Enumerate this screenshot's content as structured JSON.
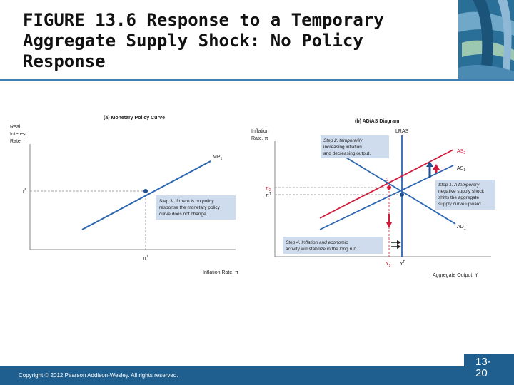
{
  "slide": {
    "title": "FIGURE 13.6  Response to a Temporary Aggregate Supply Shock: No Policy Response",
    "copyright": "Copyright © 2012 Pearson Addison-Wesley. All rights reserved.",
    "page_number_line1": "13-",
    "page_number_line2": "20"
  },
  "colors": {
    "blue_curve": "#2b66b1",
    "red_curve": "#d01c3b",
    "callout_bg": "#cfdced",
    "accent": "#1f5f8f"
  },
  "panel_a": {
    "title": "(a) Monetary Policy Curve",
    "y_axis_label_1": "Real",
    "y_axis_label_2": "Interest",
    "y_axis_label_3": "Rate, r",
    "curve_label": "MP",
    "curve_sub": "1",
    "r_label": "r",
    "r_sup": "*",
    "pi_label": "π",
    "pi_sup": "T",
    "x_axis_label": "Inflation Rate, π",
    "callout_1": "Step 3. If there is no policy",
    "callout_2": "response the monetary policy",
    "callout_3": "curve does not change."
  },
  "panel_b": {
    "title": "(b) AD/AS Diagram",
    "y_axis_label_1": "Inflation",
    "y_axis_label_2": "Rate, π",
    "lras_label": "LRAS",
    "as2_label": "AS",
    "as2_sub": "2",
    "as1_label": "AS",
    "as1_sub": "1",
    "ad1_label": "AD",
    "ad1_sub": "1",
    "point_2": "2",
    "point_1": "1",
    "pi2_label": "π",
    "pi2_sub": "2",
    "piT_label": "π",
    "piT_sup": "T",
    "y2_label": "Y",
    "y2_sub": "2",
    "yp_label": "Y",
    "yp_sup": "P",
    "x_axis_label": "Aggregate Output, Y",
    "step2_1": "Step 2. temporarily",
    "step2_2": "increasing inflation",
    "step2_3": "and decreasing output.",
    "step1_1": "Step 1. A temporary",
    "step1_2": "negative supply shock",
    "step1_3": "shifts the aggregate",
    "step1_4": "supply curve upward...",
    "step4_1": "Step 4. Inflation and economic",
    "step4_2": "activity will stabilize in the long run."
  }
}
